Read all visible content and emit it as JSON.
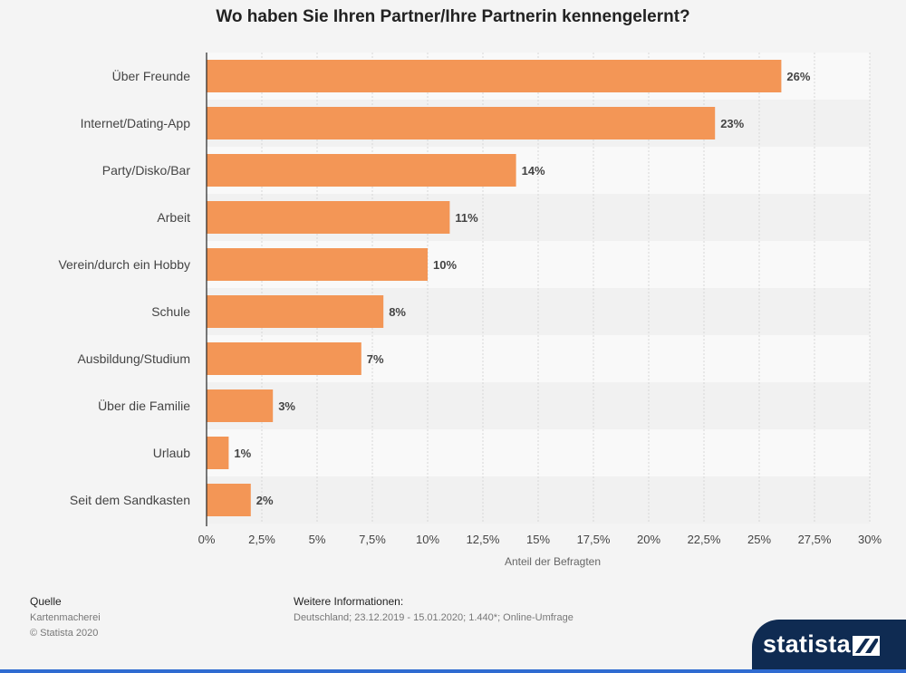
{
  "title": "Wo haben Sie Ihren Partner/Ihre Partnerin kennengelernt?",
  "chart_data": {
    "type": "bar",
    "orientation": "horizontal",
    "categories": [
      "Über Freunde",
      "Internet/Dating-App",
      "Party/Disko/Bar",
      "Arbeit",
      "Verein/durch ein Hobby",
      "Schule",
      "Ausbildung/Studium",
      "Über die Familie",
      "Urlaub",
      "Seit dem Sandkasten"
    ],
    "values": [
      26,
      23,
      14,
      11,
      10,
      8,
      7,
      3,
      1,
      2
    ],
    "value_labels": [
      "26%",
      "23%",
      "14%",
      "11%",
      "10%",
      "8%",
      "7%",
      "3%",
      "1%",
      "2%"
    ],
    "xlim": [
      0,
      30
    ],
    "xticks": [
      0,
      2.5,
      5,
      7.5,
      10,
      12.5,
      15,
      17.5,
      20,
      22.5,
      25,
      27.5,
      30
    ],
    "xtick_labels": [
      "0%",
      "2,5%",
      "5%",
      "7,5%",
      "10%",
      "12,5%",
      "15%",
      "17,5%",
      "20%",
      "22,5%",
      "25%",
      "27,5%",
      "30%"
    ],
    "xlabel": "Anteil der Befragten",
    "ylabel": "",
    "grid": true,
    "bar_color": "#f39656"
  },
  "footer": {
    "source_label": "Quelle",
    "source_lines": [
      "Kartenmacherei",
      "© Statista 2020"
    ],
    "info_label": "Weitere Informationen:",
    "info_text": "Deutschland; 23.12.2019 - 15.01.2020; 1.440*; Online-Umfrage"
  },
  "logo": {
    "text": "statista"
  }
}
